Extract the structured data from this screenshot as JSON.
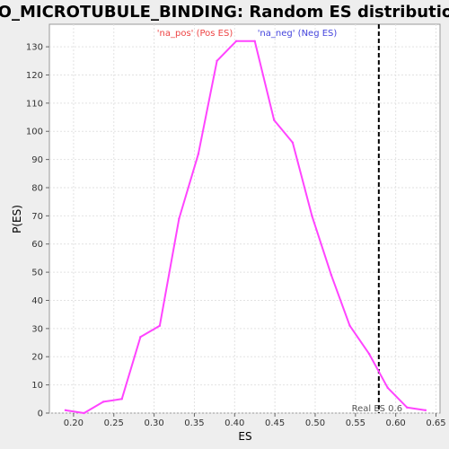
{
  "chart_data": {
    "type": "line",
    "title": "GO_MICROTUBULE_BINDING: Random ES distribution",
    "xlabel": "ES",
    "ylabel": "P(ES)",
    "xlim": [
      0.17,
      0.655
    ],
    "ylim": [
      0,
      138
    ],
    "xticks": [
      0.2,
      0.25,
      0.3,
      0.35,
      0.4,
      0.45,
      0.5,
      0.55,
      0.6,
      0.65
    ],
    "xtick_labels": [
      "0.20",
      "0.25",
      "0.30",
      "0.35",
      "0.40",
      "0.45",
      "0.50",
      "0.55",
      "0.60",
      "0.65"
    ],
    "yticks": [
      0,
      10,
      20,
      30,
      40,
      50,
      60,
      70,
      80,
      90,
      100,
      110,
      120,
      130
    ],
    "grid": true,
    "legend": [
      {
        "label": "'na_pos' (Pos ES)",
        "color": "#ee4444"
      },
      {
        "label": "'na_neg' (Neg ES)",
        "color": "#4444dd"
      }
    ],
    "legend_placement": "top-center",
    "series": [
      {
        "color": "#ff44ff",
        "x": [
          0.19,
          0.213,
          0.237,
          0.26,
          0.283,
          0.307,
          0.331,
          0.355,
          0.378,
          0.402,
          0.425,
          0.449,
          0.472,
          0.496,
          0.52,
          0.543,
          0.567,
          0.59,
          0.614,
          0.637
        ],
        "y": [
          1,
          0,
          4,
          5,
          27,
          31,
          69,
          92,
          125,
          132,
          132,
          104,
          96,
          70,
          49,
          31,
          21,
          9,
          2,
          1
        ]
      }
    ],
    "vline": {
      "x": 0.579,
      "label": "Real ES 0.6",
      "style": "dashed",
      "color": "#000000"
    }
  }
}
